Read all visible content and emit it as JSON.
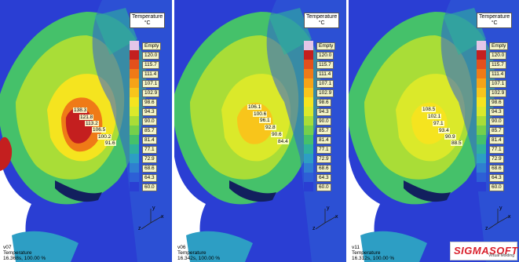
{
  "legend": {
    "title_line1": "Temperature",
    "title_line2": "°C",
    "empty_label": "Empty",
    "ticks": [
      "120.0",
      "115.7",
      "111.4",
      "107.1",
      "102.9",
      "98.6",
      "94.3",
      "90.0",
      "85.7",
      "81.4",
      "77.1",
      "72.9",
      "68.6",
      "64.3",
      "60.0"
    ],
    "colors": [
      "#c41f1f",
      "#e3501c",
      "#ef7a17",
      "#f6a317",
      "#f8c51b",
      "#f5e41f",
      "#dbe92a",
      "#a9dd37",
      "#75d04b",
      "#45c16a",
      "#2fb29b",
      "#2d9ec4",
      "#2f7fd0",
      "#2d5fd6",
      "#2a3ed3"
    ]
  },
  "panels": [
    {
      "version": "v07",
      "quantity": "Temperature",
      "time": "16.368s, 100.00 %",
      "probes": [
        "138.3",
        "121.8",
        "113.2",
        "106.5",
        "100.2",
        "91.6"
      ]
    },
    {
      "version": "v06",
      "quantity": "Temperature",
      "time": "16.342s, 100.00 %",
      "probes": [
        "106.1",
        "100.6",
        "96.1",
        "92.8",
        "90.6",
        "84.4"
      ]
    },
    {
      "version": "v11",
      "quantity": "Temperature",
      "time": "16.312s, 100.00 %",
      "probes": [
        "108.5",
        "102.1",
        "97.1",
        "93.4",
        "90.9",
        "88.5"
      ]
    }
  ],
  "axis": {
    "x": "x",
    "y": "y",
    "z": "z"
  },
  "logo": {
    "text": "SIGMASOFT",
    "sub": "Virtual Molding"
  }
}
